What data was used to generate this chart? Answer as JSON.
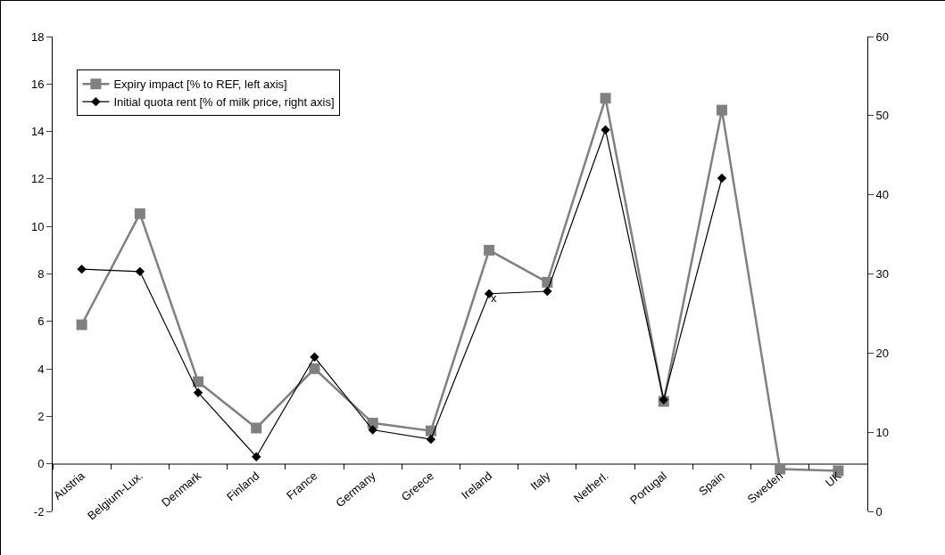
{
  "chart_data": {
    "type": "line",
    "categories": [
      "Austria",
      "Belgium-Lux.",
      "Denmark",
      "Finland",
      "France",
      "Germany",
      "Greece",
      "Ireland",
      "Italy",
      "Netherl.",
      "Portugal",
      "Spain",
      "Sweden",
      "UK"
    ],
    "series": [
      {
        "name": "Expiry impact [% to REF, left axis]",
        "color": "#808080",
        "marker": "square",
        "values": [
          5.86,
          10.54,
          3.46,
          1.51,
          4.01,
          1.72,
          1.39,
          9.0,
          7.65,
          15.4,
          2.63,
          14.9,
          -0.22,
          -0.29
        ]
      },
      {
        "name": "Initial quota rent [% of milk price, right axis]",
        "color": "#000000",
        "marker": "diamond",
        "axis": "y2",
        "values": [
          30.6,
          30.3,
          15.0,
          6.9,
          19.5,
          10.3,
          9.1,
          27.5,
          27.8,
          48.2,
          14.1,
          42.1,
          null,
          null
        ]
      }
    ],
    "ylim": [
      -2,
      18
    ],
    "yticks": [
      -2,
      0,
      2,
      4,
      6,
      8,
      10,
      12,
      14,
      16,
      18
    ],
    "y2lim": [
      0,
      60
    ],
    "y2ticks": [
      0,
      10,
      20,
      30,
      40,
      50,
      60
    ],
    "annotations": [
      {
        "text": "x",
        "x": "Ireland",
        "y": 7
      }
    ],
    "grid": false,
    "legend": "top left",
    "line_style": "solid"
  }
}
